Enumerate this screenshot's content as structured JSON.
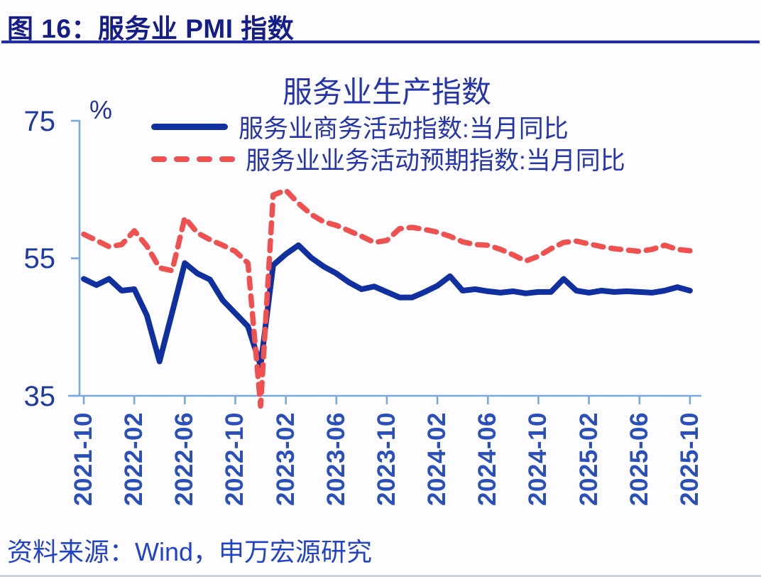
{
  "figure": {
    "title": "图 16：服务业 PMI 指数",
    "source": "资料来源：Wind，申万宏源研究"
  },
  "chart_data": {
    "type": "line",
    "title": "服务业生产指数",
    "xlabel": "",
    "ylabel": "%",
    "ylim": [
      35,
      75
    ],
    "yticks": [
      75,
      55,
      35
    ],
    "grid": false,
    "legend_position": "top-center",
    "x_tick_labels": [
      "2021-10",
      "2022-02",
      "2022-06",
      "2022-10",
      "2023-02",
      "2023-06",
      "2023-10",
      "2024-02",
      "2024-06",
      "2024-10",
      "2025-02",
      "2025-06",
      "2025-10"
    ],
    "categories": [
      "2021-10",
      "2021-11",
      "2021-12",
      "2022-01",
      "2022-02",
      "2022-03",
      "2022-04",
      "2022-05",
      "2022-06",
      "2022-07",
      "2022-08",
      "2022-09",
      "2022-10",
      "2022-11",
      "2022-12",
      "2023-01",
      "2023-02",
      "2023-03",
      "2023-04",
      "2023-05",
      "2023-06",
      "2023-07",
      "2023-08",
      "2023-09",
      "2023-10",
      "2023-11",
      "2023-12",
      "2024-01",
      "2024-02",
      "2024-03",
      "2024-04",
      "2024-05",
      "2024-06",
      "2024-07",
      "2024-08",
      "2024-09",
      "2024-10",
      "2024-11",
      "2024-12",
      "2025-01",
      "2025-02",
      "2025-03",
      "2025-04",
      "2025-05",
      "2025-06",
      "2025-07",
      "2025-08",
      "2025-09",
      "2025-10"
    ],
    "series": [
      {
        "name": "服务业商务活动指数:当月同比",
        "style": "solid",
        "color": "#10309f",
        "values": [
          52,
          51.1,
          52,
          50.3,
          50.5,
          46.7,
          40,
          47.1,
          54.3,
          52.8,
          51.9,
          48.9,
          47,
          45.1,
          39.4,
          54,
          55.6,
          56.9,
          55.1,
          53.8,
          52.8,
          51.5,
          50.5,
          50.9,
          50.1,
          49.3,
          49.3,
          50.1,
          51,
          52.4,
          50.3,
          50.5,
          50.2,
          50,
          50.2,
          49.9,
          50.1,
          50.1,
          52,
          50.3,
          50,
          50.3,
          50.1,
          50.2,
          50.1,
          50,
          50.3,
          50.8,
          50.3
        ]
      },
      {
        "name": "服务业业务活动预期指数:当月同比",
        "style": "dashed",
        "color": "#ef5150",
        "values": [
          58.5,
          57.6,
          56.7,
          57,
          59,
          56.8,
          53.6,
          53.2,
          60.9,
          58.7,
          57.7,
          56.9,
          56,
          54.3,
          33.5,
          64.2,
          64.9,
          63,
          61.4,
          60.3,
          59.8,
          59,
          58.2,
          57.3,
          57.6,
          59.3,
          59.5,
          59.2,
          58.8,
          58.2,
          57.4,
          57,
          56.9,
          56.3,
          55.5,
          54.6,
          55.3,
          56.4,
          57.3,
          57.5,
          57.1,
          56.7,
          56.4,
          56.2,
          56,
          56.3,
          56.9,
          56.3,
          56.1
        ]
      }
    ],
    "axis_color": "#78a8dc",
    "note": "红色虚线在2022-12跌破坐标轴下限35"
  }
}
